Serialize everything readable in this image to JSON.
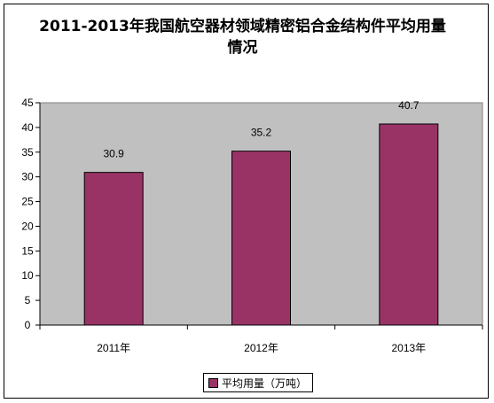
{
  "chart_data": {
    "type": "bar",
    "title": "2011-2013年我国航空器材领域精密铝合金结构件平均用量情况",
    "title_lines": [
      "2011-2013年我国航空器材领域精密铝合金结构件平均用量",
      "情况"
    ],
    "categories": [
      "2011年",
      "2012年",
      "2013年"
    ],
    "series": [
      {
        "name": "平均用量（万吨）",
        "values": [
          30.9,
          35.2,
          40.7
        ]
      }
    ],
    "data_labels": [
      "30.9",
      "35.2",
      "40.7"
    ],
    "ylim": [
      0,
      45
    ],
    "yticks": [
      0,
      5,
      10,
      15,
      20,
      25,
      30,
      35,
      40,
      45
    ],
    "xlabel": "",
    "ylabel": "",
    "grid": false,
    "legend_position": "bottom",
    "colors": {
      "bar": "#993366",
      "plot_background": "#c0c0c0",
      "frame": "#000000"
    }
  }
}
